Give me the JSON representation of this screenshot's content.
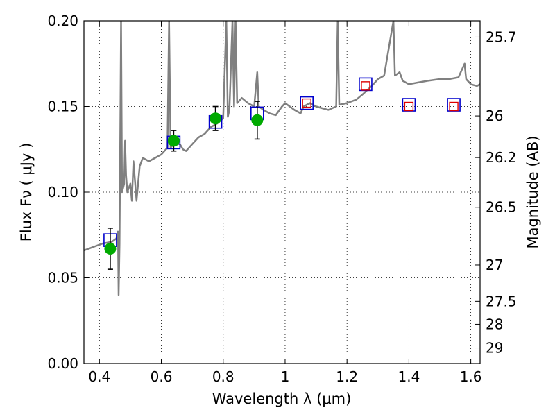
{
  "chart_data": {
    "type": "scatter",
    "xlabel": "Wavelength  λ (μm)",
    "ylabel": "Flux  Fν  ( μJy )",
    "y2label": "Magnitude (AB)",
    "xlim": [
      0.35,
      1.63
    ],
    "ylim": [
      0.0,
      0.2
    ],
    "grid": true,
    "grid_style": "dotted",
    "x_ticks": [
      0.4,
      0.6,
      0.8,
      1.0,
      1.2,
      1.4,
      1.6
    ],
    "x_tick_labels": [
      "0.4",
      "0.6",
      "0.8",
      "1",
      "1.2",
      "1.4",
      "1.6"
    ],
    "y_ticks": [
      0.0,
      0.05,
      0.1,
      0.15,
      0.2
    ],
    "y_tick_labels": [
      "0.00",
      "0.05",
      "0.10",
      "0.15",
      "0.20"
    ],
    "y2_ticks": [
      {
        "label": "25.7",
        "flux": 0.1905
      },
      {
        "label": "26",
        "flux": 0.1445
      },
      {
        "label": "26.2",
        "flux": 0.1202
      },
      {
        "label": "26.5",
        "flux": 0.0912
      },
      {
        "label": "27",
        "flux": 0.0575
      },
      {
        "label": "27.5",
        "flux": 0.0363
      },
      {
        "label": "28",
        "flux": 0.0229
      },
      {
        "label": "29",
        "flux": 0.0091
      }
    ],
    "colors": {
      "template": "#808080",
      "model_box": "#0000cc",
      "upper_box": "#dd0000",
      "observed": "#00aa00",
      "errorbar": "#000000"
    },
    "series": [
      {
        "kind": "line",
        "points": [
          [
            0.35,
            0.066
          ],
          [
            0.38,
            0.068
          ],
          [
            0.41,
            0.07
          ],
          [
            0.44,
            0.071
          ],
          [
            0.455,
            0.073
          ],
          [
            0.46,
            0.077
          ],
          [
            0.462,
            0.04
          ],
          [
            0.465,
            0.07
          ],
          [
            0.47,
            0.2
          ],
          [
            0.473,
            0.1
          ],
          [
            0.48,
            0.105
          ],
          [
            0.483,
            0.13
          ],
          [
            0.486,
            0.11
          ],
          [
            0.49,
            0.1
          ],
          [
            0.5,
            0.105
          ],
          [
            0.505,
            0.095
          ],
          [
            0.51,
            0.118
          ],
          [
            0.52,
            0.095
          ],
          [
            0.53,
            0.115
          ],
          [
            0.54,
            0.12
          ],
          [
            0.56,
            0.118
          ],
          [
            0.58,
            0.12
          ],
          [
            0.6,
            0.122
          ],
          [
            0.62,
            0.126
          ],
          [
            0.625,
            0.2
          ],
          [
            0.63,
            0.126
          ],
          [
            0.64,
            0.128
          ],
          [
            0.66,
            0.128
          ],
          [
            0.67,
            0.125
          ],
          [
            0.68,
            0.124
          ],
          [
            0.7,
            0.128
          ],
          [
            0.72,
            0.132
          ],
          [
            0.74,
            0.134
          ],
          [
            0.76,
            0.138
          ],
          [
            0.78,
            0.14
          ],
          [
            0.8,
            0.143
          ],
          [
            0.81,
            0.2
          ],
          [
            0.815,
            0.144
          ],
          [
            0.82,
            0.148
          ],
          [
            0.83,
            0.2
          ],
          [
            0.835,
            0.15
          ],
          [
            0.84,
            0.2
          ],
          [
            0.845,
            0.152
          ],
          [
            0.86,
            0.155
          ],
          [
            0.88,
            0.152
          ],
          [
            0.9,
            0.15
          ],
          [
            0.91,
            0.17
          ],
          [
            0.915,
            0.15
          ],
          [
            0.93,
            0.148
          ],
          [
            0.95,
            0.146
          ],
          [
            0.97,
            0.145
          ],
          [
            0.99,
            0.15
          ],
          [
            1.0,
            0.152
          ],
          [
            1.03,
            0.148
          ],
          [
            1.05,
            0.146
          ],
          [
            1.06,
            0.15
          ],
          [
            1.08,
            0.152
          ],
          [
            1.1,
            0.15
          ],
          [
            1.12,
            0.149
          ],
          [
            1.14,
            0.148
          ],
          [
            1.165,
            0.15
          ],
          [
            1.17,
            0.2
          ],
          [
            1.175,
            0.151
          ],
          [
            1.2,
            0.152
          ],
          [
            1.23,
            0.154
          ],
          [
            1.25,
            0.157
          ],
          [
            1.28,
            0.162
          ],
          [
            1.3,
            0.166
          ],
          [
            1.32,
            0.168
          ],
          [
            1.35,
            0.2
          ],
          [
            1.355,
            0.168
          ],
          [
            1.37,
            0.17
          ],
          [
            1.38,
            0.165
          ],
          [
            1.4,
            0.163
          ],
          [
            1.43,
            0.164
          ],
          [
            1.46,
            0.165
          ],
          [
            1.5,
            0.166
          ],
          [
            1.53,
            0.166
          ],
          [
            1.56,
            0.167
          ],
          [
            1.58,
            0.175
          ],
          [
            1.585,
            0.166
          ],
          [
            1.6,
            0.163
          ],
          [
            1.62,
            0.162
          ],
          [
            1.63,
            0.163
          ]
        ]
      },
      {
        "kind": "model_boxes",
        "points": [
          [
            0.435,
            0.072
          ],
          [
            0.64,
            0.129
          ],
          [
            0.775,
            0.141
          ],
          [
            0.91,
            0.146
          ],
          [
            1.07,
            0.152
          ],
          [
            1.26,
            0.163
          ],
          [
            1.4,
            0.151
          ],
          [
            1.545,
            0.151
          ]
        ]
      },
      {
        "kind": "upper_limit_boxes",
        "points": [
          [
            1.07,
            0.152
          ],
          [
            1.26,
            0.162
          ],
          [
            1.4,
            0.15
          ],
          [
            1.545,
            0.15
          ]
        ]
      },
      {
        "kind": "observed_points",
        "points": [
          {
            "x": 0.435,
            "y": 0.067,
            "err": 0.012
          },
          {
            "x": 0.64,
            "y": 0.13,
            "err": 0.006
          },
          {
            "x": 0.775,
            "y": 0.143,
            "err": 0.007
          },
          {
            "x": 0.91,
            "y": 0.142,
            "err": 0.011
          }
        ]
      }
    ]
  }
}
